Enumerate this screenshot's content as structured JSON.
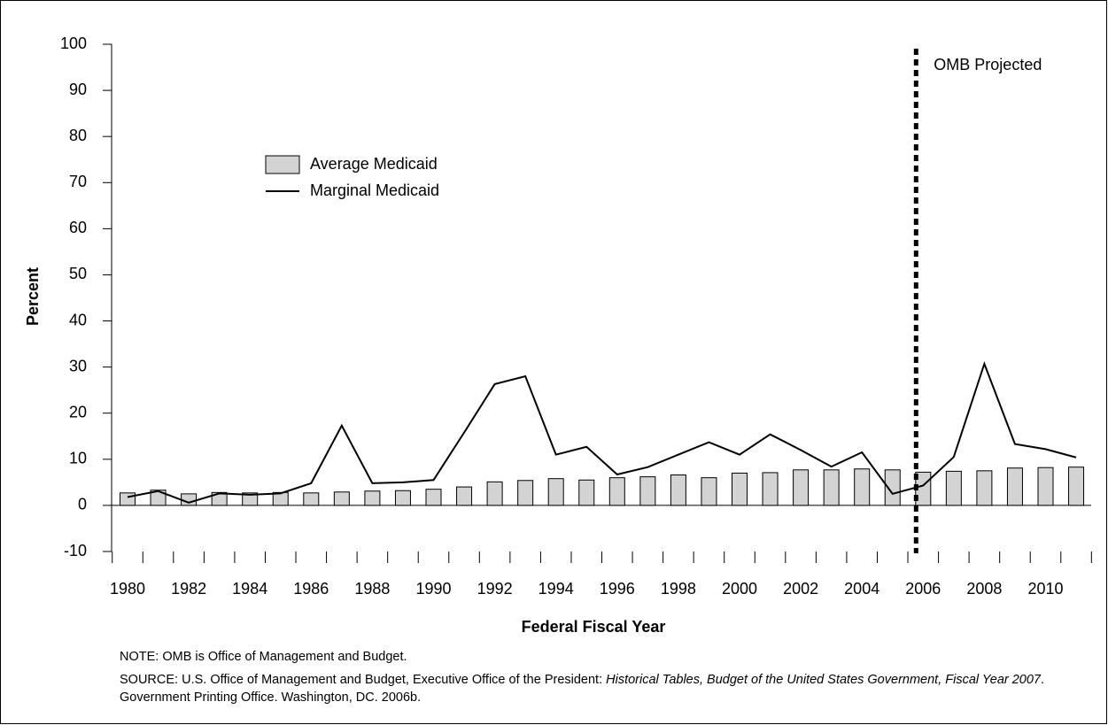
{
  "chart_data": {
    "type": "bar-line",
    "y_label": "Percent",
    "x_label": "Federal Fiscal Year",
    "categories": [
      "1980",
      null,
      "1982",
      null,
      "1984",
      null,
      "1986",
      null,
      "1988",
      null,
      "1990",
      null,
      "1992",
      null,
      "1994",
      null,
      "1996",
      null,
      "1998",
      null,
      "2000",
      null,
      "2002",
      null,
      "2004",
      null,
      "2006",
      null,
      "2008",
      null,
      "2010",
      null
    ],
    "series": [
      {
        "name": "Average Medicaid",
        "kind": "bar",
        "color": "#d3d3d3",
        "values": [
          2.7,
          3.3,
          2.5,
          2.8,
          2.7,
          2.8,
          2.7,
          2.9,
          3.1,
          3.2,
          3.5,
          4.0,
          5.1,
          5.4,
          5.8,
          5.5,
          6.0,
          6.2,
          6.6,
          6.0,
          7.0,
          7.1,
          7.7,
          7.7,
          7.9,
          7.7,
          7.2,
          7.4,
          7.5,
          8.1,
          8.2,
          8.3
        ]
      },
      {
        "name": "Marginal Medicaid",
        "kind": "line",
        "color": "#000000",
        "values": [
          1.8,
          3.1,
          0.6,
          2.6,
          2.3,
          2.6,
          4.8,
          17.3,
          4.8,
          5.0,
          5.5,
          15.8,
          26.3,
          28.0,
          11.0,
          12.7,
          6.7,
          8.3,
          11.0,
          13.7,
          11.0,
          15.4,
          12.0,
          8.4,
          11.5,
          2.5,
          4.3,
          10.5,
          30.7,
          13.3,
          12.2,
          10.4
        ]
      }
    ],
    "ylim": [
      -10,
      100
    ],
    "yticks": [
      -10,
      0,
      10,
      20,
      30,
      40,
      50,
      60,
      70,
      80,
      90,
      100
    ],
    "annotation": {
      "text": "OMB Projected",
      "at_category": 26
    },
    "note": "NOTE: OMB is Office of Management and Budget.",
    "source": [
      {
        "text": "SOURCE: U.S. Office of Management and Budget, Executive Office of the President: ",
        "italic": false
      },
      {
        "text": "Historical Tables, Budget of the United States Government, Fiscal Year 2007",
        "italic": true
      },
      {
        "text": ". Government Printing Office. Washington, DC. 2006b.",
        "italic": false
      }
    ]
  }
}
